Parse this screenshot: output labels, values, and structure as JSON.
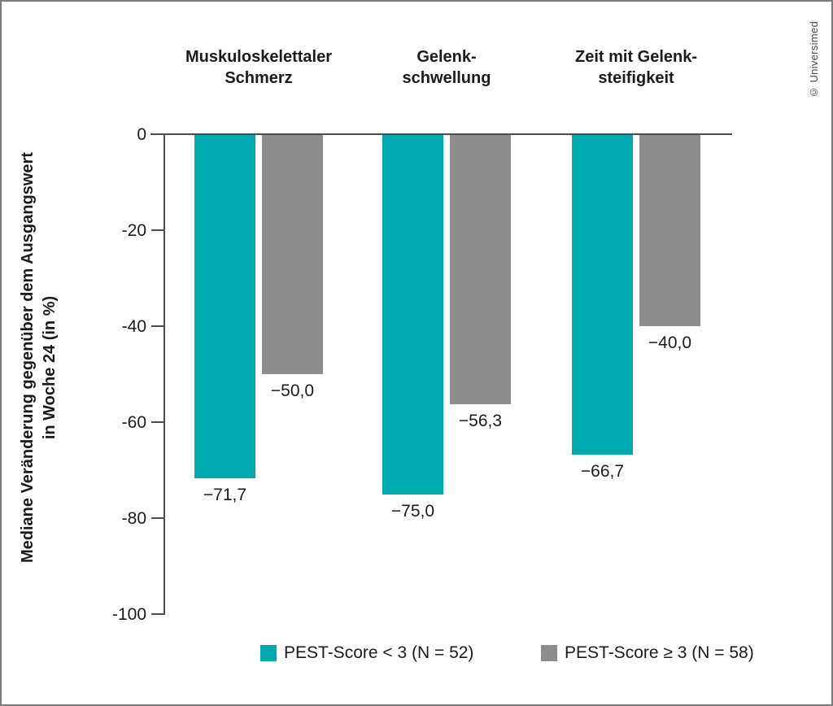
{
  "credit": "© Universimed",
  "chart_data": {
    "type": "bar",
    "orientation": "vertical",
    "categories": [
      [
        "Muskuloskelettaler",
        "Schmerz"
      ],
      [
        "Gelenk-",
        "schwellung"
      ],
      [
        "Zeit mit Gelenk-",
        "steifigkeit"
      ]
    ],
    "series": [
      {
        "name": "PEST-Score < 3 (N = 52)",
        "color": "#00A9AD",
        "values": [
          -71.7,
          -75.0,
          -66.7
        ],
        "value_labels": [
          "−71,7",
          "−75,0",
          "−66,7"
        ]
      },
      {
        "name": "PEST-Score ≥ 3 (N = 58)",
        "color": "#8D8D8D",
        "values": [
          -50.0,
          -56.3,
          -40.0
        ],
        "value_labels": [
          "−50,0",
          "−56,3",
          "−40,0"
        ]
      }
    ],
    "ylabel_lines": [
      "Mediane Veränderung gegenüber dem Ausgangswert",
      "in Woche 24 (in %)"
    ],
    "ylim": [
      -100,
      0
    ],
    "yticks": [
      0,
      -20,
      -40,
      -60,
      -80,
      -100
    ],
    "ytick_labels": [
      "0",
      "-20",
      "-40",
      "-60",
      "-80",
      "-100"
    ],
    "grid": false,
    "legend_position": "bottom"
  },
  "style": {
    "axis_color": "#4d4d4f",
    "text_color": "#1b1b1b"
  }
}
